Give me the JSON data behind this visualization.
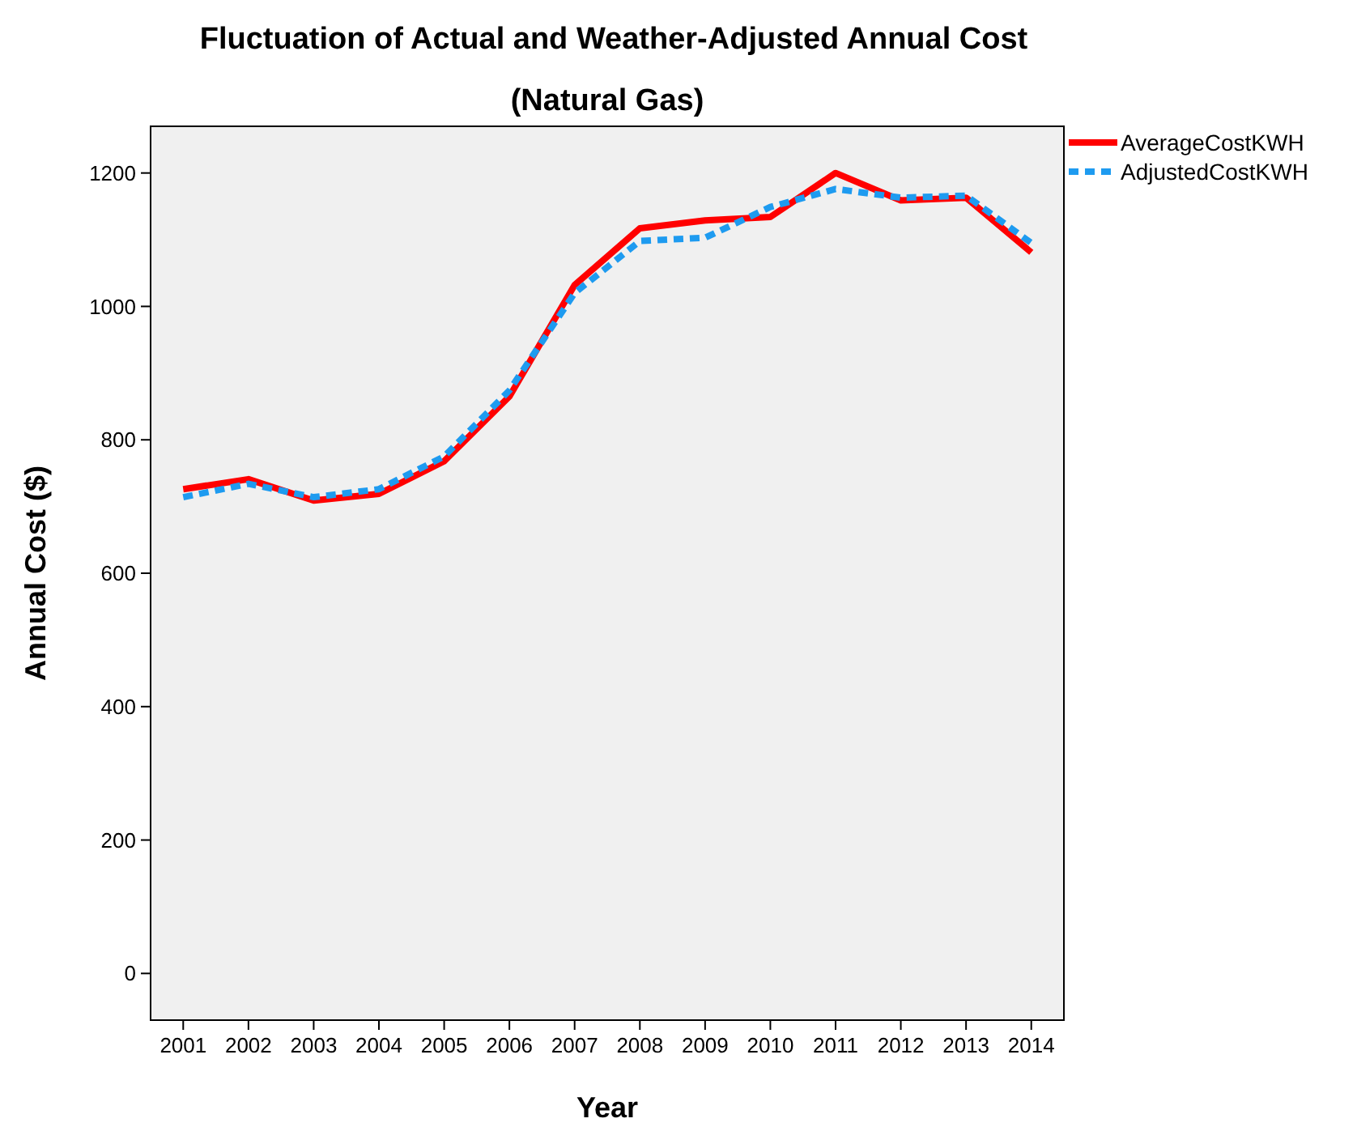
{
  "chart_data": {
    "type": "line",
    "title": "Fluctuation of Actual and Weather-Adjusted Annual Cost",
    "subtitle": "(Natural Gas)",
    "xlabel": "Year",
    "ylabel": "Annual Cost ($)",
    "categories": [
      "2001",
      "2002",
      "2003",
      "2004",
      "2005",
      "2006",
      "2007",
      "2008",
      "2009",
      "2010",
      "2011",
      "2012",
      "2013",
      "2014"
    ],
    "series": [
      {
        "name": "AverageCostKWH",
        "color": "#ff0000",
        "line_style": "solid",
        "values": [
          726,
          741,
          709,
          719,
          768,
          865,
          1032,
          1117,
          1129,
          1134,
          1200,
          1159,
          1163,
          1081
        ]
      },
      {
        "name": "AdjustedCostKWH",
        "color": "#1e9bf0",
        "line_style": "dashed",
        "values": [
          714,
          734,
          714,
          726,
          775,
          874,
          1020,
          1098,
          1103,
          1149,
          1176,
          1163,
          1166,
          1095
        ]
      }
    ],
    "ylim": [
      -70,
      1270
    ],
    "yticks": [
      0,
      200,
      400,
      600,
      800,
      1000,
      1200
    ],
    "legend": "top right",
    "grid": false,
    "marker": "none"
  }
}
